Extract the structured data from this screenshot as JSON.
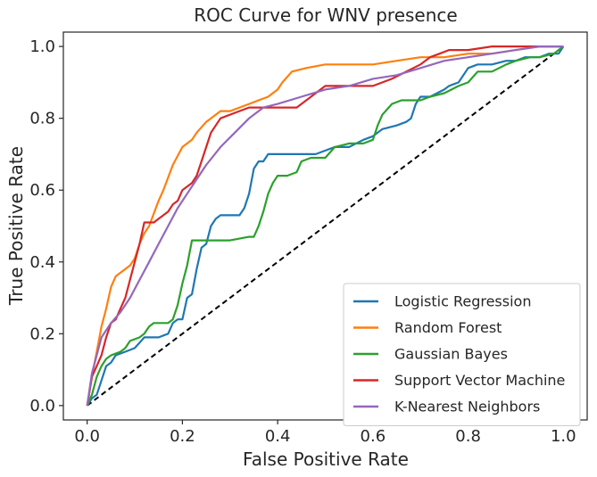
{
  "chart_data": {
    "type": "line",
    "title": "ROC Curve for WNV presence",
    "xlabel": "False Positive Rate",
    "ylabel": "True Positive Rate",
    "xlim": [
      -0.05,
      1.05
    ],
    "ylim": [
      -0.04,
      1.04
    ],
    "xticks": [
      0.0,
      0.2,
      0.4,
      0.6,
      0.8,
      1.0
    ],
    "yticks": [
      0.0,
      0.2,
      0.4,
      0.6,
      0.8,
      1.0
    ],
    "xtick_labels": [
      "0.0",
      "0.2",
      "0.4",
      "0.6",
      "0.8",
      "1.0"
    ],
    "ytick_labels": [
      "0.0",
      "0.2",
      "0.4",
      "0.6",
      "0.8",
      "1.0"
    ],
    "grid": false,
    "legend_position": "lower-right",
    "series": [
      {
        "name": "Logistic Regression",
        "color": "#1f77b4",
        "x": [
          0,
          0.01,
          0.02,
          0.03,
          0.04,
          0.05,
          0.06,
          0.08,
          0.1,
          0.12,
          0.15,
          0.17,
          0.18,
          0.19,
          0.2,
          0.21,
          0.22,
          0.23,
          0.24,
          0.25,
          0.26,
          0.27,
          0.28,
          0.29,
          0.3,
          0.32,
          0.33,
          0.34,
          0.35,
          0.36,
          0.37,
          0.38,
          0.39,
          0.4,
          0.42,
          0.45,
          0.48,
          0.5,
          0.52,
          0.55,
          0.58,
          0.6,
          0.62,
          0.65,
          0.67,
          0.68,
          0.69,
          0.7,
          0.72,
          0.75,
          0.76,
          0.78,
          0.8,
          0.82,
          0.85,
          0.88,
          0.9,
          0.92,
          0.95,
          0.97,
          0.99,
          1.0
        ],
        "y": [
          0,
          0.02,
          0.03,
          0.07,
          0.11,
          0.12,
          0.14,
          0.15,
          0.16,
          0.19,
          0.19,
          0.2,
          0.23,
          0.24,
          0.24,
          0.3,
          0.31,
          0.38,
          0.44,
          0.45,
          0.5,
          0.52,
          0.53,
          0.53,
          0.53,
          0.53,
          0.55,
          0.59,
          0.66,
          0.68,
          0.68,
          0.7,
          0.7,
          0.7,
          0.7,
          0.7,
          0.7,
          0.71,
          0.72,
          0.72,
          0.74,
          0.75,
          0.77,
          0.78,
          0.79,
          0.8,
          0.84,
          0.86,
          0.86,
          0.88,
          0.89,
          0.9,
          0.94,
          0.95,
          0.95,
          0.96,
          0.96,
          0.97,
          0.97,
          0.98,
          0.98,
          1.0
        ]
      },
      {
        "name": "Random Forest",
        "color": "#ff7f0e",
        "x": [
          0,
          0.01,
          0.02,
          0.03,
          0.04,
          0.05,
          0.06,
          0.08,
          0.09,
          0.1,
          0.11,
          0.12,
          0.13,
          0.15,
          0.16,
          0.18,
          0.2,
          0.22,
          0.23,
          0.25,
          0.27,
          0.28,
          0.3,
          0.32,
          0.34,
          0.36,
          0.38,
          0.4,
          0.41,
          0.43,
          0.46,
          0.5,
          0.55,
          0.6,
          0.65,
          0.7,
          0.75,
          0.8,
          0.85,
          0.9,
          0.95,
          1.0
        ],
        "y": [
          0,
          0.08,
          0.15,
          0.22,
          0.27,
          0.33,
          0.36,
          0.38,
          0.39,
          0.41,
          0.45,
          0.48,
          0.5,
          0.57,
          0.6,
          0.67,
          0.72,
          0.74,
          0.76,
          0.79,
          0.81,
          0.82,
          0.82,
          0.83,
          0.84,
          0.85,
          0.86,
          0.88,
          0.9,
          0.93,
          0.94,
          0.95,
          0.95,
          0.95,
          0.96,
          0.97,
          0.97,
          0.98,
          0.98,
          0.99,
          1.0,
          1.0
        ]
      },
      {
        "name": "Gaussian Bayes",
        "color": "#2ca02c",
        "x": [
          0,
          0.01,
          0.02,
          0.03,
          0.04,
          0.05,
          0.07,
          0.08,
          0.09,
          0.11,
          0.12,
          0.13,
          0.14,
          0.15,
          0.17,
          0.18,
          0.19,
          0.2,
          0.21,
          0.22,
          0.24,
          0.25,
          0.28,
          0.3,
          0.34,
          0.35,
          0.36,
          0.37,
          0.38,
          0.39,
          0.4,
          0.42,
          0.44,
          0.45,
          0.47,
          0.5,
          0.52,
          0.55,
          0.58,
          0.6,
          0.61,
          0.62,
          0.64,
          0.66,
          0.68,
          0.7,
          0.72,
          0.75,
          0.78,
          0.8,
          0.82,
          0.85,
          0.88,
          0.9,
          0.93,
          0.95,
          0.98,
          1.0
        ],
        "y": [
          0,
          0.03,
          0.08,
          0.11,
          0.13,
          0.14,
          0.15,
          0.16,
          0.18,
          0.19,
          0.2,
          0.22,
          0.23,
          0.23,
          0.23,
          0.24,
          0.28,
          0.34,
          0.39,
          0.46,
          0.46,
          0.46,
          0.46,
          0.46,
          0.47,
          0.47,
          0.5,
          0.54,
          0.59,
          0.62,
          0.64,
          0.64,
          0.65,
          0.68,
          0.69,
          0.69,
          0.72,
          0.73,
          0.73,
          0.74,
          0.78,
          0.81,
          0.84,
          0.85,
          0.85,
          0.85,
          0.86,
          0.87,
          0.89,
          0.9,
          0.93,
          0.93,
          0.95,
          0.96,
          0.97,
          0.97,
          0.98,
          1.0
        ]
      },
      {
        "name": "Support Vector Machine",
        "color": "#d62728",
        "x": [
          0,
          0.01,
          0.02,
          0.03,
          0.04,
          0.05,
          0.06,
          0.07,
          0.08,
          0.09,
          0.1,
          0.11,
          0.12,
          0.14,
          0.15,
          0.16,
          0.17,
          0.18,
          0.19,
          0.2,
          0.22,
          0.23,
          0.24,
          0.25,
          0.26,
          0.27,
          0.28,
          0.3,
          0.32,
          0.34,
          0.36,
          0.4,
          0.44,
          0.47,
          0.5,
          0.55,
          0.6,
          0.64,
          0.67,
          0.7,
          0.72,
          0.74,
          0.76,
          0.8,
          0.85,
          0.9,
          0.95,
          1.0
        ],
        "y": [
          0,
          0.08,
          0.11,
          0.14,
          0.19,
          0.23,
          0.24,
          0.27,
          0.3,
          0.35,
          0.4,
          0.45,
          0.51,
          0.51,
          0.52,
          0.53,
          0.54,
          0.56,
          0.57,
          0.6,
          0.62,
          0.64,
          0.68,
          0.72,
          0.76,
          0.78,
          0.8,
          0.81,
          0.82,
          0.83,
          0.83,
          0.83,
          0.83,
          0.86,
          0.89,
          0.89,
          0.89,
          0.91,
          0.93,
          0.95,
          0.97,
          0.98,
          0.99,
          0.99,
          1.0,
          1.0,
          1.0,
          1.0
        ]
      },
      {
        "name": "K-Nearest Neighbors",
        "color": "#9467bd",
        "x": [
          0,
          0.01,
          0.02,
          0.03,
          0.05,
          0.07,
          0.09,
          0.11,
          0.13,
          0.15,
          0.17,
          0.19,
          0.21,
          0.23,
          0.25,
          0.28,
          0.31,
          0.34,
          0.37,
          0.4,
          0.45,
          0.5,
          0.55,
          0.6,
          0.65,
          0.7,
          0.75,
          0.8,
          0.85,
          0.9,
          0.95,
          1.0
        ],
        "y": [
          0,
          0.09,
          0.14,
          0.19,
          0.23,
          0.26,
          0.3,
          0.35,
          0.4,
          0.45,
          0.5,
          0.55,
          0.59,
          0.63,
          0.67,
          0.72,
          0.76,
          0.8,
          0.83,
          0.84,
          0.86,
          0.88,
          0.89,
          0.91,
          0.92,
          0.94,
          0.96,
          0.97,
          0.98,
          0.99,
          1.0,
          1.0
        ]
      }
    ],
    "reference_line": {
      "color": "#000000",
      "style": "dashed",
      "x": [
        0,
        1
      ],
      "y": [
        0,
        1
      ]
    }
  }
}
